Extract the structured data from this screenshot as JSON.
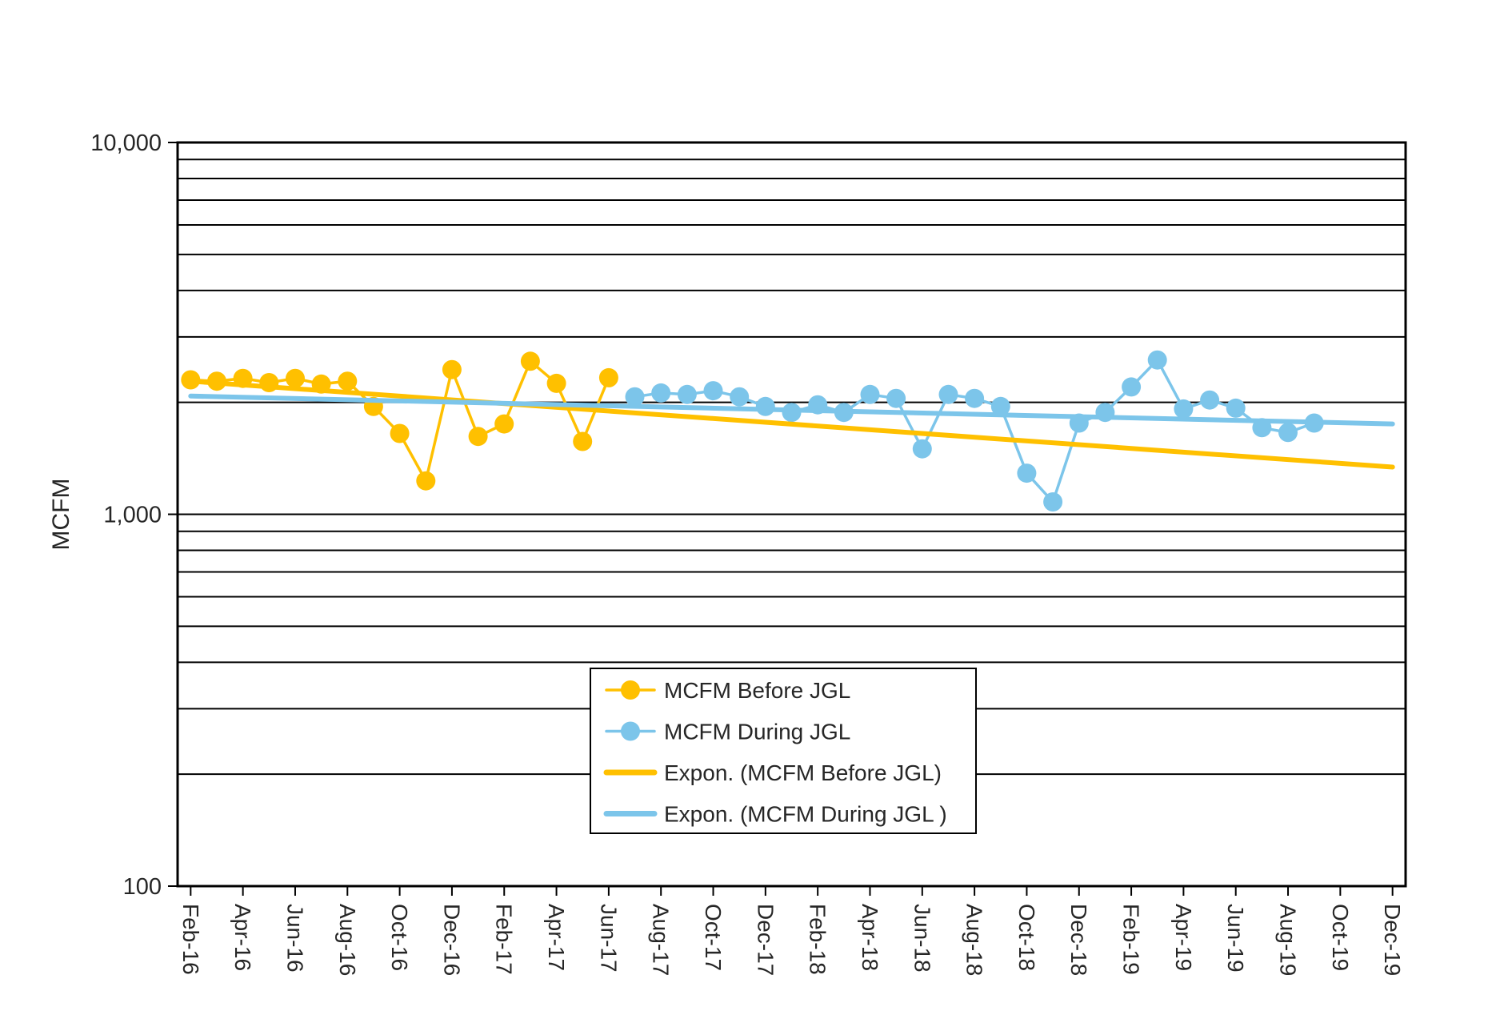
{
  "chart_data": {
    "type": "line",
    "title": "",
    "y_axis": {
      "label": "MCFM",
      "scale": "log",
      "min": 100,
      "max": 10000,
      "ticks": [
        {
          "value": 100,
          "label": "100"
        },
        {
          "value": 1000,
          "label": "1,000"
        },
        {
          "value": 10000,
          "label": "10,000"
        }
      ]
    },
    "x_tick_interval": 2,
    "x_categories": [
      "Feb-16",
      "Mar-16",
      "Apr-16",
      "May-16",
      "Jun-16",
      "Jul-16",
      "Aug-16",
      "Sep-16",
      "Oct-16",
      "Nov-16",
      "Dec-16",
      "Jan-17",
      "Feb-17",
      "Mar-17",
      "Apr-17",
      "May-17",
      "Jun-17",
      "Jul-17",
      "Aug-17",
      "Sep-17",
      "Oct-17",
      "Nov-17",
      "Dec-17",
      "Jan-18",
      "Feb-18",
      "Mar-18",
      "Apr-18",
      "May-18",
      "Jun-18",
      "Jul-18",
      "Aug-18",
      "Sep-18",
      "Oct-18",
      "Nov-18",
      "Dec-18",
      "Jan-19",
      "Feb-19",
      "Mar-19",
      "Apr-19",
      "May-19",
      "Jun-19",
      "Jul-19",
      "Aug-19",
      "Sep-19",
      "Oct-19",
      "Nov-19",
      "Dec-19"
    ],
    "series": [
      {
        "name": "MCFM Before JGL",
        "color": "#FFC000",
        "values": [
          2300,
          2280,
          2320,
          2260,
          2320,
          2240,
          2280,
          1950,
          1650,
          1230,
          2450,
          1620,
          1750,
          2580,
          2250,
          1570,
          2330,
          null,
          null,
          null,
          null,
          null,
          null,
          null,
          null,
          null,
          null,
          null,
          null,
          null,
          null,
          null,
          null,
          null,
          null,
          null,
          null,
          null,
          null,
          null,
          null,
          null,
          null,
          null,
          null,
          null,
          null
        ]
      },
      {
        "name": "MCFM During JGL",
        "color": "#7CC5EA",
        "values": [
          null,
          null,
          null,
          null,
          null,
          null,
          null,
          null,
          null,
          null,
          null,
          null,
          null,
          null,
          null,
          null,
          null,
          2070,
          2120,
          2100,
          2150,
          2070,
          1950,
          1880,
          1970,
          1880,
          2100,
          2050,
          1500,
          2100,
          2050,
          1950,
          1290,
          1080,
          1760,
          1880,
          2200,
          2600,
          1920,
          2030,
          1930,
          1710,
          1660,
          1760,
          null,
          null,
          null
        ]
      }
    ],
    "trendlines": [
      {
        "name": "Expon. (MCFM Before JGL)",
        "color": "#FFC000",
        "start_value": 2280,
        "end_value": 1340
      },
      {
        "name": "Expon. (MCFM During JGL )",
        "color": "#7CC5EA",
        "start_value": 2080,
        "end_value": 1750
      }
    ],
    "legend": {
      "position": "bottom-center",
      "entries": [
        "MCFM Before JGL",
        "MCFM During JGL",
        "Expon. (MCFM Before JGL)",
        "Expon. (MCFM During JGL )"
      ]
    },
    "grid": "log-minor-gridlines-on",
    "xlabel": "",
    "ylabel": "MCFM"
  }
}
